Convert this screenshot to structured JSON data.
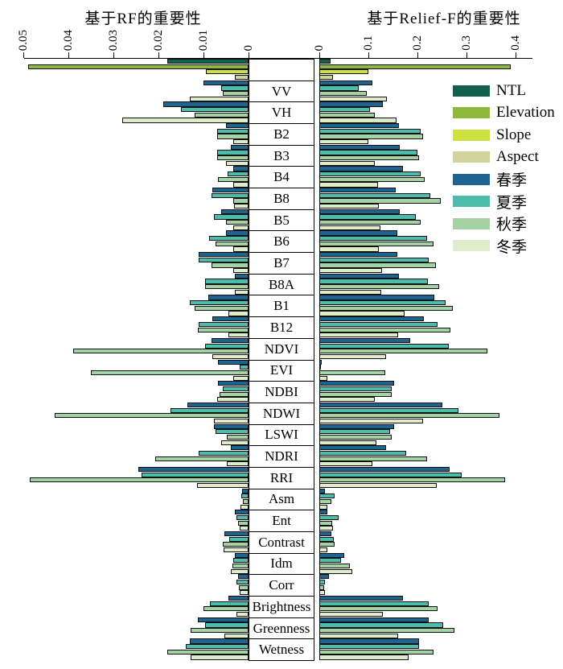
{
  "figure": {
    "left_title": "基于RF的重要性",
    "right_title": "基于Relief-F的重要性"
  },
  "legend": [
    {
      "label": "NTL",
      "color": "#14604f"
    },
    {
      "label": "Elevation",
      "color": "#8fb93a"
    },
    {
      "label": "Slope",
      "color": "#cfe13f"
    },
    {
      "label": "Aspect",
      "color": "#d2d29c"
    },
    {
      "label": "春季",
      "color": "#1f6391"
    },
    {
      "label": "夏季",
      "color": "#4cbcab"
    },
    {
      "label": "秋季",
      "color": "#a3d3a4"
    },
    {
      "label": "冬季",
      "color": "#dfeccb"
    }
  ],
  "chart_data": {
    "type": "bar",
    "orientation": "bidirectional-horizontal",
    "left_axis": {
      "title": "基于RF的重要性",
      "max": 0.05,
      "tick_values": [
        0.05,
        0.04,
        0.03,
        0.02,
        0.01,
        0
      ],
      "tick_labels": [
        "0.05",
        "0.04",
        "0.03",
        "0.02",
        "0.01",
        "0"
      ]
    },
    "right_axis": {
      "title": "基于Relief-F的重要性",
      "max": 0.4,
      "tick_values": [
        0,
        0.1,
        0.2,
        0.3,
        0.4
      ],
      "tick_labels": [
        "0",
        "0.1",
        "0.2",
        "0.3",
        "0.4"
      ]
    },
    "series_names": [
      "NTL",
      "Elevation",
      "Slope",
      "Aspect",
      "春季",
      "夏季",
      "秋季",
      "冬季"
    ],
    "groups": [
      {
        "label": "",
        "series": [
          "NTL",
          "Elevation",
          "Slope",
          "Aspect"
        ],
        "left": [
          0.018,
          0.049,
          0.0095,
          0.003
        ],
        "right": [
          0.023,
          0.39,
          0.1,
          0.028
        ]
      },
      {
        "label": "VV",
        "series": [
          "春季",
          "夏季",
          "秋季",
          "冬季"
        ],
        "left": [
          0.01,
          0.006,
          0.0057,
          0.013
        ],
        "right": [
          0.108,
          0.08,
          0.097,
          0.138
        ]
      },
      {
        "label": "VH",
        "series": [
          "春季",
          "夏季",
          "秋季",
          "冬季"
        ],
        "left": [
          0.019,
          0.015,
          0.012,
          0.028
        ],
        "right": [
          0.13,
          0.103,
          0.113,
          0.157
        ]
      },
      {
        "label": "B2",
        "series": [
          "春季",
          "夏季",
          "秋季",
          "冬季"
        ],
        "left": [
          0.005,
          0.007,
          0.007,
          0.0034
        ],
        "right": [
          0.163,
          0.207,
          0.211,
          0.1
        ]
      },
      {
        "label": "B3",
        "series": [
          "春季",
          "夏季",
          "秋季",
          "冬季"
        ],
        "left": [
          0.004,
          0.007,
          0.007,
          0.005
        ],
        "right": [
          0.164,
          0.2,
          0.204,
          0.113
        ]
      },
      {
        "label": "B4",
        "series": [
          "春季",
          "夏季",
          "秋季",
          "冬季"
        ],
        "left": [
          0.0034,
          0.0047,
          0.0067,
          0.0034
        ],
        "right": [
          0.17,
          0.206,
          0.215,
          0.12
        ]
      },
      {
        "label": "B8",
        "series": [
          "春季",
          "夏季",
          "秋季",
          "冬季"
        ],
        "left": [
          0.008,
          0.0083,
          0.0034,
          0.0033
        ],
        "right": [
          0.155,
          0.226,
          0.248,
          0.121
        ]
      },
      {
        "label": "B5",
        "series": [
          "春季",
          "夏季",
          "秋季",
          "冬季"
        ],
        "left": [
          0.006,
          0.0077,
          0.005,
          0.0034
        ],
        "right": [
          0.164,
          0.196,
          0.207,
          0.125
        ]
      },
      {
        "label": "B6",
        "series": [
          "春季",
          "夏季",
          "秋季",
          "冬季"
        ],
        "left": [
          0.005,
          0.0088,
          0.0073,
          0.0034
        ],
        "right": [
          0.159,
          0.22,
          0.233,
          0.122
        ]
      },
      {
        "label": "B7",
        "series": [
          "春季",
          "夏季",
          "秋季",
          "冬季"
        ],
        "left": [
          0.011,
          0.011,
          0.0083,
          0.0034
        ],
        "right": [
          0.159,
          0.223,
          0.237,
          0.128
        ]
      },
      {
        "label": "B8A",
        "series": [
          "春季",
          "夏季",
          "秋季",
          "冬季"
        ],
        "left": [
          0.003,
          0.0096,
          0.0096,
          0.003
        ],
        "right": [
          0.162,
          0.222,
          0.245,
          0.127
        ]
      },
      {
        "label": "B1",
        "series": [
          "春季",
          "夏季",
          "秋季",
          "冬季"
        ],
        "left": [
          0.009,
          0.013,
          0.012,
          0.0045
        ],
        "right": [
          0.234,
          0.258,
          0.272,
          0.173
        ]
      },
      {
        "label": "B12",
        "series": [
          "春季",
          "夏季",
          "秋季",
          "冬季"
        ],
        "left": [
          0.008,
          0.011,
          0.0113,
          0.0045
        ],
        "right": [
          0.213,
          0.241,
          0.267,
          0.16
        ]
      },
      {
        "label": "NDVI",
        "series": [
          "春季",
          "夏季",
          "秋季",
          "冬季"
        ],
        "left": [
          0.0083,
          0.0096,
          0.039,
          0.008
        ],
        "right": [
          0.185,
          0.264,
          0.343,
          0.136
        ]
      },
      {
        "label": "EVI",
        "series": [
          "春季",
          "夏季",
          "秋季",
          "冬季"
        ],
        "left": [
          0.0067,
          0.002,
          0.035,
          0.0034
        ],
        "right": [
          0.005,
          0.004,
          0.135,
          0.016
        ]
      },
      {
        "label": "NDBI",
        "series": [
          "春季",
          "夏季",
          "秋季",
          "冬季"
        ],
        "left": [
          0.0067,
          0.0057,
          0.0065,
          0.007
        ],
        "right": [
          0.152,
          0.148,
          0.147,
          0.113
        ]
      },
      {
        "label": "NDWI",
        "series": [
          "春季",
          "夏季",
          "秋季",
          "冬季"
        ],
        "left": [
          0.0135,
          0.0174,
          0.043,
          0.0077
        ],
        "right": [
          0.25,
          0.283,
          0.368,
          0.212
        ]
      },
      {
        "label": "LSWI",
        "series": [
          "春季",
          "夏季",
          "秋季",
          "冬季"
        ],
        "left": [
          0.0077,
          0.0074,
          0.0049,
          0.0061
        ],
        "right": [
          0.152,
          0.145,
          0.147,
          0.116
        ]
      },
      {
        "label": "NDRI",
        "series": [
          "春季",
          "夏季",
          "秋季",
          "冬季"
        ],
        "left": [
          0.004,
          0.011,
          0.0207,
          0.0049
        ],
        "right": [
          0.136,
          0.177,
          0.22,
          0.109
        ]
      },
      {
        "label": "RRI",
        "series": [
          "春季",
          "夏季",
          "秋季",
          "冬季"
        ],
        "left": [
          0.0245,
          0.0238,
          0.0486,
          0.0115
        ],
        "right": [
          0.266,
          0.29,
          0.378,
          0.239
        ]
      },
      {
        "label": "Asm",
        "series": [
          "春季",
          "夏季",
          "秋季",
          "冬季"
        ],
        "left": [
          0.0015,
          0.0016,
          0.0013,
          0.0018
        ],
        "right": [
          0.012,
          0.031,
          0.024,
          0.017
        ]
      },
      {
        "label": "Ent",
        "series": [
          "春季",
          "夏季",
          "秋季",
          "冬季"
        ],
        "left": [
          0.003,
          0.0027,
          0.0024,
          0.002
        ],
        "right": [
          0.016,
          0.039,
          0.027,
          0.028
        ]
      },
      {
        "label": "Contrast",
        "series": [
          "春季",
          "夏季",
          "秋季",
          "冬季"
        ],
        "left": [
          0.0054,
          0.0042,
          0.0058,
          0.0055
        ],
        "right": [
          0.024,
          0.029,
          0.031,
          0.017
        ]
      },
      {
        "label": "Idm",
        "series": [
          "春季",
          "夏季",
          "秋季",
          "冬季"
        ],
        "left": [
          0.003,
          0.0034,
          0.0036,
          0.004
        ],
        "right": [
          0.05,
          0.045,
          0.063,
          0.068
        ]
      },
      {
        "label": "Corr",
        "series": [
          "春季",
          "夏季",
          "秋季",
          "冬季"
        ],
        "left": [
          0.0024,
          0.0027,
          0.0022,
          0.002
        ],
        "right": [
          0.019,
          0.012,
          0.01,
          0.012
        ]
      },
      {
        "label": "Brightness",
        "series": [
          "春季",
          "夏季",
          "秋季",
          "冬季"
        ],
        "left": [
          0.0045,
          0.0085,
          0.01,
          0.0027
        ],
        "right": [
          0.17,
          0.223,
          0.241,
          0.13
        ]
      },
      {
        "label": "Greenness",
        "series": [
          "春季",
          "夏季",
          "秋季",
          "冬季"
        ],
        "left": [
          0.0112,
          0.0097,
          0.0128,
          0.0054
        ],
        "right": [
          0.223,
          0.252,
          0.275,
          0.16
        ]
      },
      {
        "label": "Wetness",
        "series": [
          "春季",
          "夏季",
          "秋季",
          "冬季"
        ],
        "left": [
          0.013,
          0.0139,
          0.018,
          0.0128
        ],
        "right": [
          0.203,
          0.203,
          0.233,
          0.182
        ]
      }
    ]
  }
}
